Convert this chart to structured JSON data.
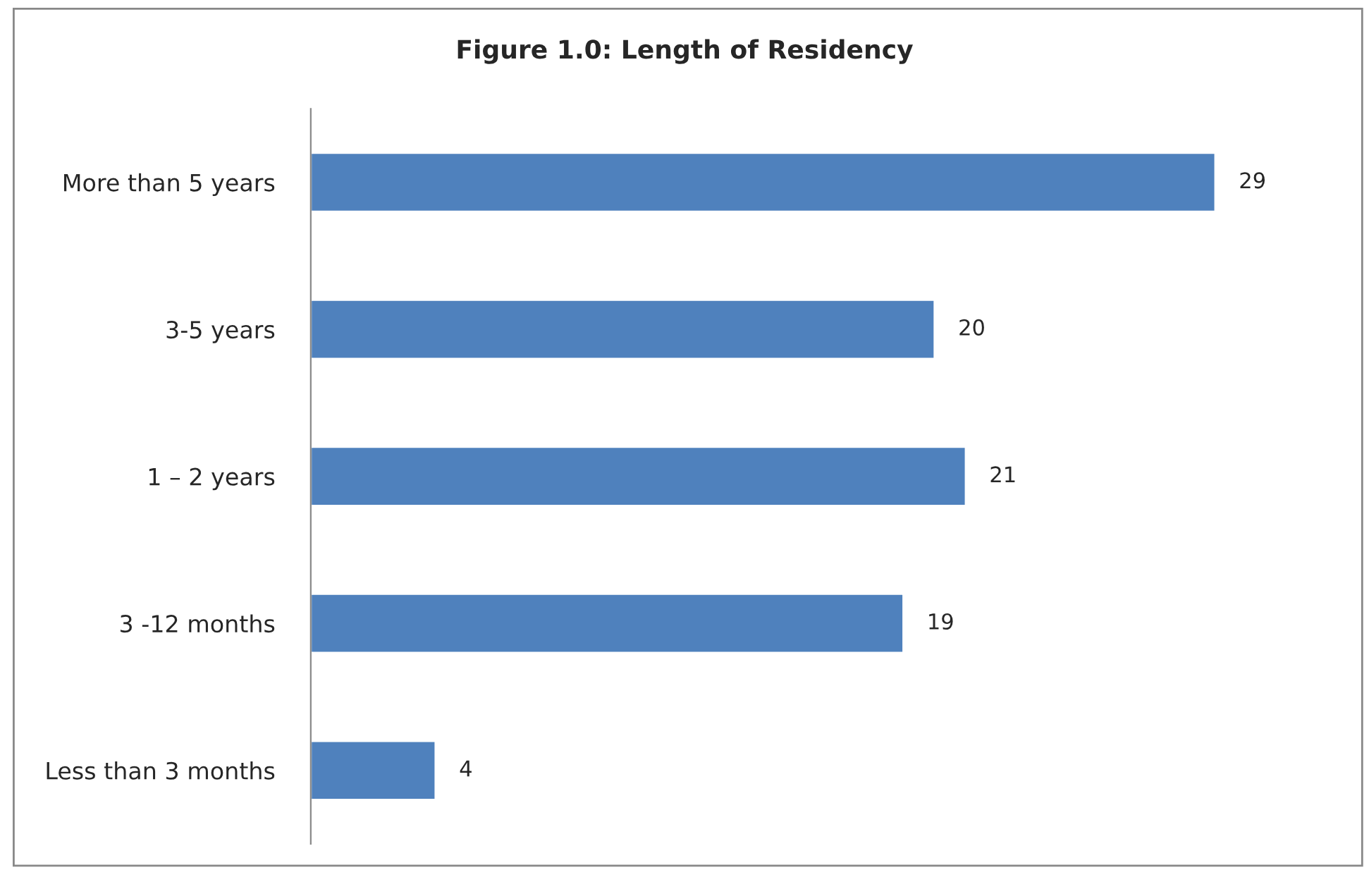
{
  "chart_data": {
    "type": "bar",
    "title": "Figure 1.0: Length of Residency",
    "orientation": "horizontal",
    "categories": [
      "More than 5 years",
      "3-5 years",
      "1 – 2 years",
      "3 -12 months",
      "Less than 3 months"
    ],
    "values": [
      29,
      20,
      21,
      19,
      4
    ],
    "color": "#4f81bd",
    "data_labels": true,
    "grid": false,
    "legend": false,
    "tick_labels": "y"
  }
}
